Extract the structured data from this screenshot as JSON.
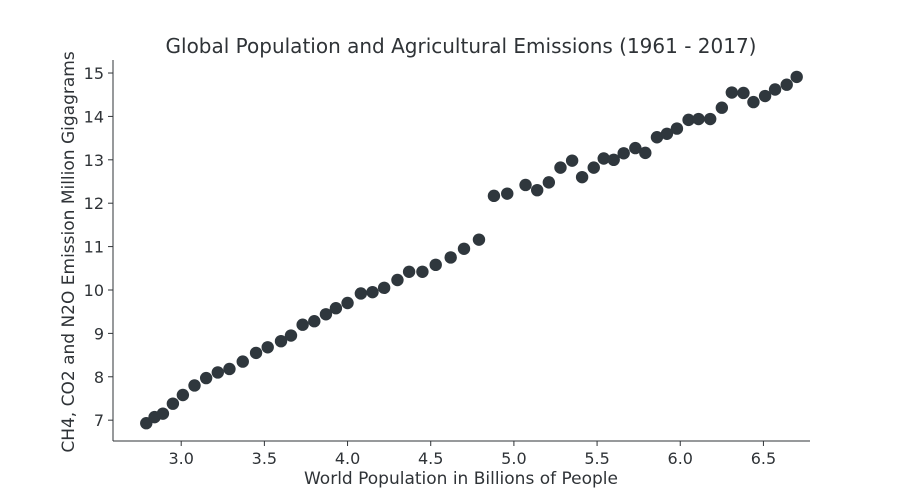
{
  "chart_data": {
    "type": "scatter",
    "title": "Global Population and Agricultural Emissions (1961 - 2017)",
    "xlabel": "World Population in Billions of People",
    "ylabel": "CH4, CO2 and N2O Emission Million Gigagrams",
    "xlim": [
      2.59,
      6.78
    ],
    "ylim": [
      6.52,
      15.3
    ],
    "x_ticks": [
      "3.0",
      "3.5",
      "4.0",
      "4.5",
      "5.0",
      "5.5",
      "6.0",
      "6.5"
    ],
    "y_ticks": [
      "7",
      "8",
      "9",
      "10",
      "11",
      "12",
      "13",
      "14",
      "15"
    ],
    "grid": false,
    "point_color": "#2f373d",
    "series": [
      {
        "points": [
          [
            2.79,
            6.93
          ],
          [
            2.84,
            7.07
          ],
          [
            2.89,
            7.15
          ],
          [
            2.95,
            7.38
          ],
          [
            3.01,
            7.58
          ],
          [
            3.08,
            7.8
          ],
          [
            3.15,
            7.97
          ],
          [
            3.22,
            8.1
          ],
          [
            3.29,
            8.18
          ],
          [
            3.37,
            8.35
          ],
          [
            3.45,
            8.55
          ],
          [
            3.52,
            8.68
          ],
          [
            3.6,
            8.82
          ],
          [
            3.66,
            8.95
          ],
          [
            3.73,
            9.2
          ],
          [
            3.8,
            9.28
          ],
          [
            3.87,
            9.44
          ],
          [
            3.93,
            9.58
          ],
          [
            4.0,
            9.7
          ],
          [
            4.08,
            9.92
          ],
          [
            4.15,
            9.95
          ],
          [
            4.22,
            10.05
          ],
          [
            4.3,
            10.23
          ],
          [
            4.37,
            10.42
          ],
          [
            4.45,
            10.42
          ],
          [
            4.53,
            10.58
          ],
          [
            4.62,
            10.75
          ],
          [
            4.7,
            10.95
          ],
          [
            4.79,
            11.16
          ],
          [
            4.88,
            12.17
          ],
          [
            4.96,
            12.22
          ],
          [
            5.07,
            12.42
          ],
          [
            5.14,
            12.3
          ],
          [
            5.21,
            12.48
          ],
          [
            5.28,
            12.82
          ],
          [
            5.35,
            12.98
          ],
          [
            5.41,
            12.6
          ],
          [
            5.48,
            12.82
          ],
          [
            5.54,
            13.03
          ],
          [
            5.6,
            13.0
          ],
          [
            5.66,
            13.15
          ],
          [
            5.73,
            13.27
          ],
          [
            5.79,
            13.16
          ],
          [
            5.86,
            13.52
          ],
          [
            5.92,
            13.6
          ],
          [
            5.98,
            13.72
          ],
          [
            6.05,
            13.92
          ],
          [
            6.11,
            13.94
          ],
          [
            6.18,
            13.94
          ],
          [
            6.25,
            14.2
          ],
          [
            6.31,
            14.55
          ],
          [
            6.38,
            14.54
          ],
          [
            6.44,
            14.33
          ],
          [
            6.51,
            14.47
          ],
          [
            6.57,
            14.62
          ],
          [
            6.64,
            14.73
          ],
          [
            6.7,
            14.91
          ]
        ]
      }
    ]
  }
}
